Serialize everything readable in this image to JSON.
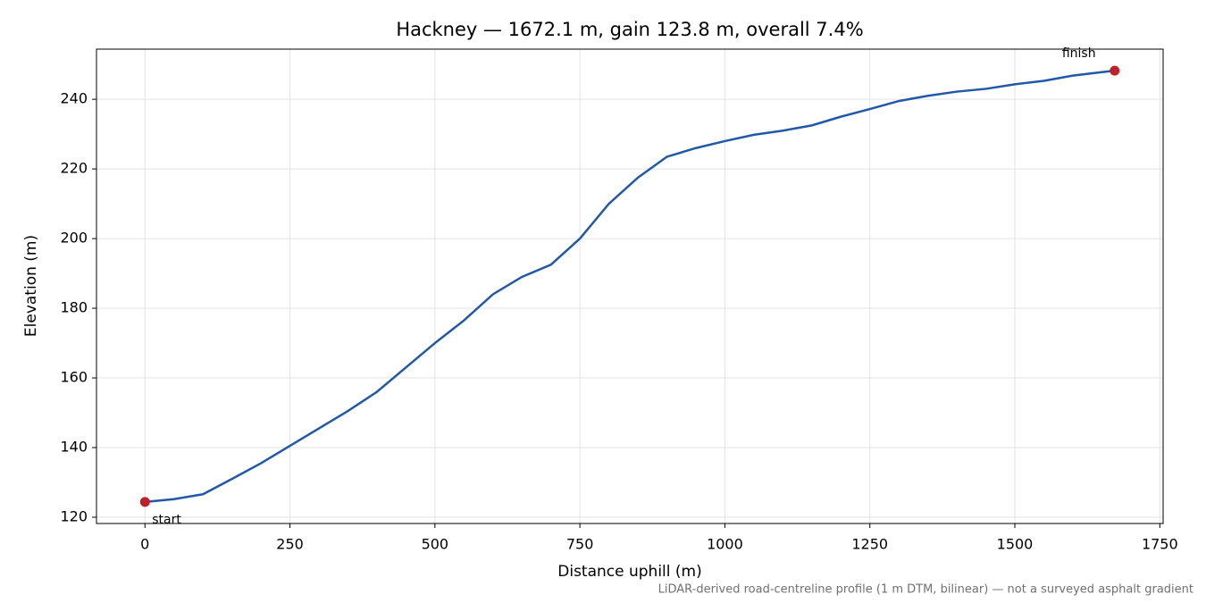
{
  "chart_data": {
    "type": "line",
    "title": "Hackney — 1672.1 m, gain 123.8 m, overall 7.4%",
    "x_label": "Distance uphill (m)",
    "y_label": "Elevation (m)",
    "footnote": "LiDAR-derived road-centreline profile (1 m DTM, bilinear) — not a surveyed asphalt gradient",
    "series": [
      {
        "color": "#2158a8",
        "x": [
          0,
          50,
          100,
          150,
          200,
          250,
          300,
          350,
          400,
          450,
          500,
          550,
          600,
          650,
          700,
          750,
          800,
          850,
          900,
          950,
          1000,
          1050,
          1100,
          1150,
          1200,
          1250,
          1300,
          1350,
          1400,
          1450,
          1500,
          1550,
          1600,
          1650,
          1672.1
        ],
        "values": [
          124.4,
          125.2,
          126.6,
          131,
          135.5,
          140.5,
          145.5,
          150.5,
          156,
          163,
          170,
          176.5,
          184,
          189,
          192.5,
          200,
          210,
          217.5,
          223.5,
          226,
          228,
          229.8,
          231,
          232.5,
          235,
          237.2,
          239.5,
          241,
          242.2,
          243,
          244.3,
          245.3,
          246.8,
          247.8,
          248.2
        ]
      }
    ],
    "points": {
      "color": "#c0202a",
      "x": [
        0,
        1672.1
      ],
      "y": [
        124.4,
        248.2
      ],
      "labels": [
        "start",
        "finish"
      ]
    },
    "xlim": [
      -83.6,
      1755.7
    ],
    "ylim": [
      118.2,
      254.4
    ],
    "xticks": [
      0,
      250,
      500,
      750,
      1000,
      1250,
      1500,
      1750
    ],
    "yticks": [
      120,
      140,
      160,
      180,
      200,
      220,
      240
    ],
    "grid": true
  }
}
